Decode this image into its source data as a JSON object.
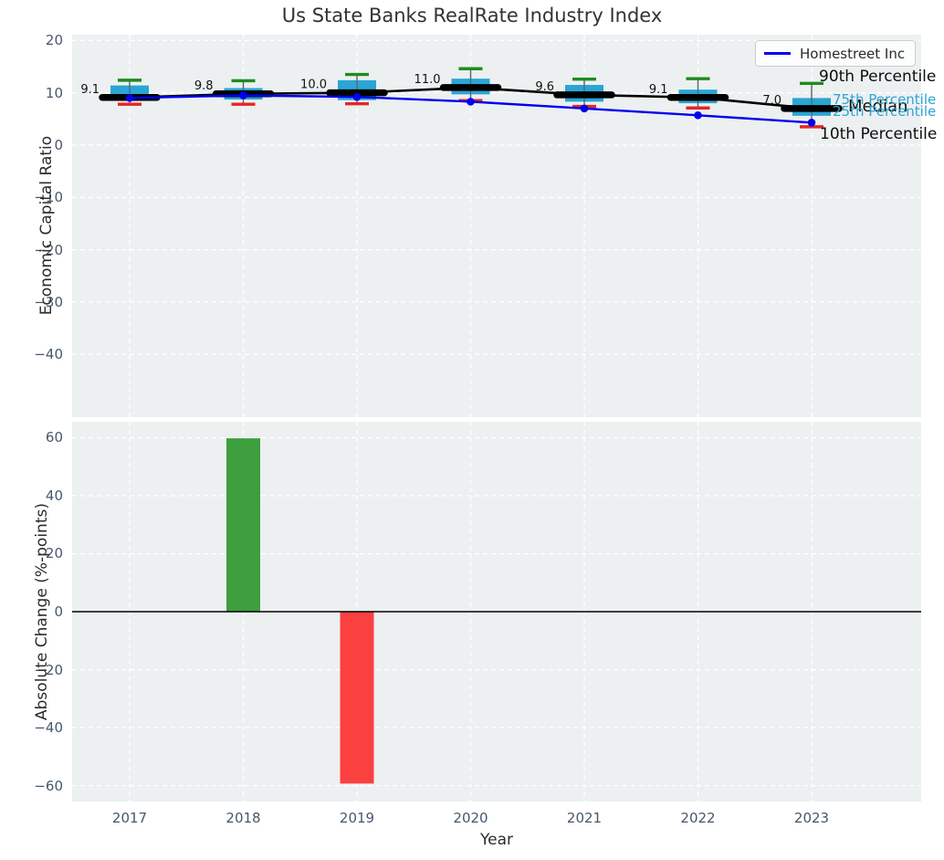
{
  "title": "Us State Banks RealRate Industry Index",
  "legend": {
    "label": "Homestreet Inc"
  },
  "annotations": {
    "p90": "90th Percentile",
    "p75": "75th Percentile",
    "median": "Median",
    "p25": "25th Percentile",
    "p10": "10th Percentile"
  },
  "colors": {
    "box_fill": "#2aa5d4",
    "cap_high": "#1e8c1e",
    "cap_low": "#e82525",
    "median_line": "#000000",
    "company_line": "#0000ee",
    "bar_up": "#3d9f3d",
    "bar_down": "#fb4040",
    "plot_bg": "#ecf0f1",
    "grid": "#ffffff",
    "whisker": "#5a6268",
    "tick_text": "#46586b"
  },
  "chart_data": [
    {
      "type": "boxplot",
      "title": "Us State Banks RealRate Industry Index",
      "xlabel": "Year",
      "ylabel": "Economic Capital Ratio",
      "categories": [
        "2017",
        "2018",
        "2019",
        "2020",
        "2021",
        "2022",
        "2023"
      ],
      "yticks": [
        20,
        10,
        0,
        -10,
        -20,
        -30,
        -40
      ],
      "ylim": [
        -52.0,
        21.1
      ],
      "grid": true,
      "legend_position": "upper right",
      "series": [
        {
          "name": "90th Percentile",
          "values": [
            12.4,
            12.3,
            13.5,
            14.6,
            12.6,
            12.7,
            11.8
          ]
        },
        {
          "name": "75th Percentile",
          "values": [
            11.4,
            10.9,
            12.4,
            12.7,
            11.5,
            10.6,
            9.0
          ]
        },
        {
          "name": "Median",
          "values": [
            9.1,
            9.8,
            10.0,
            11.0,
            9.6,
            9.1,
            7.0
          ]
        },
        {
          "name": "25th Percentile",
          "values": [
            8.5,
            8.7,
            8.6,
            9.7,
            8.3,
            8.0,
            5.6
          ]
        },
        {
          "name": "10th Percentile",
          "values": [
            7.8,
            7.8,
            7.9,
            8.5,
            7.4,
            7.1,
            3.5
          ]
        },
        {
          "name": "Homestreet Inc",
          "values": [
            9.0,
            9.5,
            9.2,
            8.3,
            7.0,
            5.7,
            4.3
          ]
        }
      ],
      "median_labels": [
        "9.1",
        "9.8",
        "10.0",
        "11.0",
        "9.6",
        "9.1",
        "7.0"
      ]
    },
    {
      "type": "bar",
      "xlabel": "Year",
      "ylabel": "Absolute Change (%-points)",
      "categories": [
        "2017",
        "2018",
        "2019",
        "2020",
        "2021",
        "2022",
        "2023"
      ],
      "values": [
        null,
        59.8,
        -59.3,
        null,
        null,
        null,
        null
      ],
      "yticks": [
        60,
        40,
        20,
        0,
        -20,
        -40,
        -60
      ],
      "ylim": [
        -65.5,
        65.5
      ],
      "grid": true,
      "zero_line": true
    }
  ]
}
